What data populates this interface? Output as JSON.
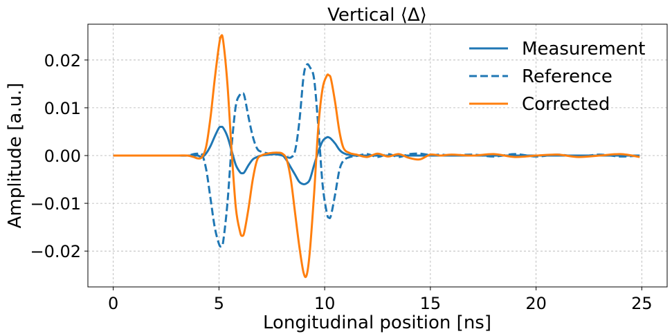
{
  "chart_data": {
    "type": "line",
    "title": "Vertical ⟨Δ⟩",
    "xlabel": "Longitudinal position [ns]",
    "ylabel": "Amplitude [a.u.]",
    "xlim": [
      -1.2,
      26.2
    ],
    "ylim": [
      -0.0275,
      0.0275
    ],
    "xticks": [
      0,
      5,
      10,
      15,
      20,
      25
    ],
    "xtick_labels": [
      "0",
      "5",
      "10",
      "15",
      "20",
      "25"
    ],
    "yticks": [
      -0.02,
      -0.01,
      0.0,
      0.01,
      0.02
    ],
    "ytick_labels": [
      "−0.02",
      "−0.01",
      "0.00",
      "0.01",
      "0.02"
    ],
    "grid": true,
    "legend_position": "top-right",
    "x": [
      0.0,
      1.0,
      2.0,
      3.0,
      3.5,
      3.8,
      4.0,
      4.2,
      4.4,
      4.6,
      4.8,
      5.0,
      5.1,
      5.2,
      5.4,
      5.6,
      5.8,
      6.0,
      6.1,
      6.2,
      6.4,
      6.6,
      6.8,
      7.0,
      7.4,
      7.8,
      8.0,
      8.2,
      8.4,
      8.6,
      8.8,
      9.0,
      9.15,
      9.3,
      9.5,
      9.7,
      9.9,
      10.1,
      10.2,
      10.3,
      10.5,
      10.7,
      10.9,
      11.2,
      11.5,
      12.0,
      12.5,
      13.0,
      13.5,
      14.0,
      14.5,
      15.0,
      15.5,
      16.0,
      17.0,
      18.0,
      19.0,
      20.0,
      21.0,
      22.0,
      23.0,
      24.0,
      24.9
    ],
    "series": [
      {
        "name": "Measurement",
        "color": "#1f77b4",
        "style": "solid",
        "values": [
          0,
          0,
          0,
          0,
          0,
          0,
          0,
          -0.0003,
          0.0005,
          0.002,
          0.004,
          0.0058,
          0.006,
          0.0058,
          0.004,
          0.001,
          -0.002,
          -0.0035,
          -0.0037,
          -0.0035,
          -0.002,
          -0.0008,
          -0.0003,
          0,
          0.0002,
          0.0003,
          0.0001,
          -0.001,
          -0.0025,
          -0.004,
          -0.0055,
          -0.006,
          -0.0058,
          -0.005,
          -0.002,
          0.0008,
          0.003,
          0.0038,
          0.0038,
          0.0035,
          0.0025,
          0.0012,
          0.0005,
          0.0001,
          0,
          0,
          0,
          0,
          0,
          0,
          0,
          0,
          0,
          0,
          0,
          0,
          0,
          0,
          0,
          0,
          0,
          0,
          0
        ]
      },
      {
        "name": "Reference",
        "color": "#1f77b4",
        "style": "dashed",
        "values": [
          0,
          0,
          0,
          0,
          0,
          0.0003,
          0.0004,
          0.0002,
          -0.003,
          -0.009,
          -0.015,
          -0.0185,
          -0.019,
          -0.018,
          -0.01,
          0.002,
          0.0105,
          0.0128,
          0.013,
          0.0125,
          0.008,
          0.004,
          0.0015,
          0.0008,
          0.0004,
          0.0002,
          0,
          -0.0003,
          -0.0004,
          0.001,
          0.007,
          0.0165,
          0.019,
          0.0185,
          0.016,
          0.006,
          -0.006,
          -0.012,
          -0.013,
          -0.0125,
          -0.008,
          -0.003,
          -0.001,
          -0.0003,
          -0.0001,
          0.0003,
          -0.0003,
          0.0003,
          -0.0003,
          0.0003,
          0.0004,
          0.0001,
          0.0002,
          0,
          0.0002,
          -0.0002,
          0.0003,
          -0.0002,
          0.0002,
          -0.0002,
          0.0002,
          -0.0002,
          0
        ]
      },
      {
        "name": "Corrected",
        "color": "#ff7f0e",
        "style": "solid",
        "values": [
          0,
          0,
          0,
          0,
          0,
          -0.0003,
          -0.0006,
          -0.0003,
          0.002,
          0.008,
          0.016,
          0.023,
          0.025,
          0.024,
          0.015,
          0.001,
          -0.011,
          -0.016,
          -0.0168,
          -0.016,
          -0.011,
          -0.005,
          -0.001,
          0,
          0.0005,
          0.0006,
          0.0004,
          -0.0008,
          -0.005,
          -0.012,
          -0.019,
          -0.0245,
          -0.025,
          -0.02,
          -0.008,
          0.006,
          0.014,
          0.0167,
          0.0168,
          0.016,
          0.011,
          0.005,
          0.0015,
          0.0005,
          0.0002,
          -0.0003,
          0.0004,
          -0.0002,
          0.0003,
          -0.0005,
          -0.0008,
          0.0002,
          0,
          0.0002,
          0,
          0.0003,
          -0.0003,
          0,
          0.0002,
          -0.0003,
          0,
          0.0003,
          -0.0003
        ]
      }
    ]
  }
}
